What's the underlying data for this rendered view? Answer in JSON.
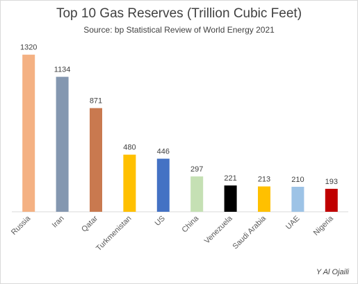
{
  "chart_data": {
    "type": "bar",
    "title": "Top 10 Gas Reserves (Trillion Cubic Feet)",
    "subtitle": "Source: bp Statistical Review of World Energy 2021",
    "xlabel": "",
    "ylabel": "",
    "categories": [
      "Russia",
      "Iran",
      "Qatar",
      "Turkmenistan",
      "US",
      "China",
      "Venezuela",
      "Saudi Arabia",
      "UAE",
      "Nigeria"
    ],
    "values": [
      1320,
      1134,
      871,
      480,
      446,
      297,
      221,
      213,
      210,
      193
    ],
    "colors": [
      "#f4b183",
      "#8497b0",
      "#c9794f",
      "#ffc000",
      "#4472c4",
      "#c5e0b4",
      "#000000",
      "#ffc000",
      "#9dc3e6",
      "#c00000"
    ],
    "ylim": [
      0,
      1400
    ],
    "grid": false,
    "legend": "none",
    "data_labels": true
  },
  "footer": {
    "author": "Y Al Ojaili"
  }
}
